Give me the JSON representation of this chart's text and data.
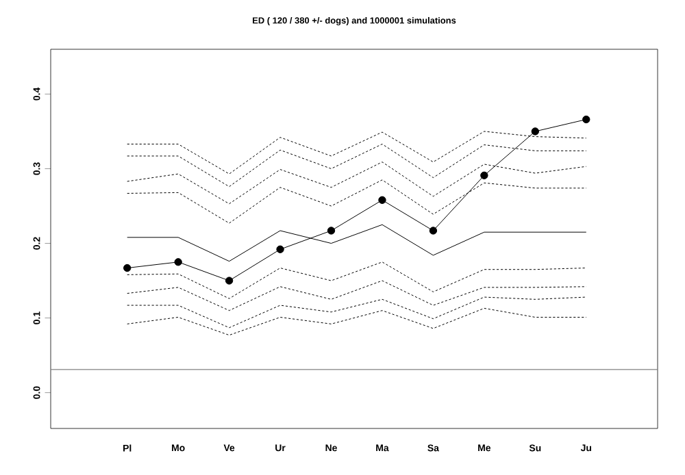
{
  "chart_data": {
    "type": "line",
    "title": "ED ( 120 / 380  +/- dogs) and 1000001 simulations",
    "categories": [
      "Pl",
      "Mo",
      "Ve",
      "Ur",
      "Ne",
      "Ma",
      "Sa",
      "Me",
      "Su",
      "Ju"
    ],
    "ylim": [
      -0.048,
      0.46
    ],
    "yticks": [
      {
        "value": 0,
        "label": "0.0"
      },
      {
        "value": 0.1,
        "label": "0.1"
      },
      {
        "value": 0.2,
        "label": "0.2"
      },
      {
        "value": 0.3,
        "label": "0.3"
      },
      {
        "value": 0.4,
        "label": "0.4"
      }
    ],
    "grid": false,
    "ref_lines": [
      {
        "axis": "y",
        "value": 0.031,
        "color": "#808080"
      }
    ],
    "series": [
      {
        "color": "#000000",
        "line_style": "dotted",
        "values": [
          0.333,
          0.333,
          0.293,
          0.342,
          0.317,
          0.349,
          0.309,
          0.35,
          0.343,
          0.341
        ]
      },
      {
        "color": "#000000",
        "line_style": "dotted",
        "values": [
          0.317,
          0.317,
          0.276,
          0.325,
          0.3,
          0.333,
          0.288,
          0.332,
          0.324,
          0.324
        ]
      },
      {
        "color": "#000000",
        "line_style": "dotted",
        "values": [
          0.283,
          0.293,
          0.253,
          0.299,
          0.275,
          0.309,
          0.263,
          0.306,
          0.294,
          0.303
        ]
      },
      {
        "color": "#000000",
        "line_style": "dotted",
        "values": [
          0.267,
          0.268,
          0.227,
          0.275,
          0.25,
          0.285,
          0.239,
          0.281,
          0.274,
          0.274
        ]
      },
      {
        "color": "#000000",
        "line_style": "solid",
        "values": [
          0.208,
          0.208,
          0.176,
          0.217,
          0.2,
          0.225,
          0.184,
          0.215,
          0.215,
          0.215
        ]
      },
      {
        "color": "#000000",
        "line_style": "dotted",
        "values": [
          0.158,
          0.159,
          0.126,
          0.167,
          0.15,
          0.175,
          0.135,
          0.165,
          0.165,
          0.167
        ]
      },
      {
        "color": "#000000",
        "line_style": "dotted",
        "values": [
          0.133,
          0.141,
          0.11,
          0.142,
          0.125,
          0.15,
          0.117,
          0.141,
          0.141,
          0.142
        ]
      },
      {
        "color": "#000000",
        "line_style": "dotted",
        "values": [
          0.117,
          0.117,
          0.087,
          0.117,
          0.108,
          0.125,
          0.099,
          0.128,
          0.125,
          0.128
        ]
      },
      {
        "color": "#000000",
        "line_style": "dotted",
        "values": [
          0.092,
          0.101,
          0.077,
          0.101,
          0.092,
          0.11,
          0.086,
          0.113,
          0.101,
          0.101
        ]
      },
      {
        "color": "#000000",
        "line_style": "solid",
        "marker": "circle",
        "values": [
          0.167,
          0.175,
          0.15,
          0.192,
          0.217,
          0.258,
          0.217,
          0.291,
          0.35,
          0.366
        ]
      }
    ]
  }
}
